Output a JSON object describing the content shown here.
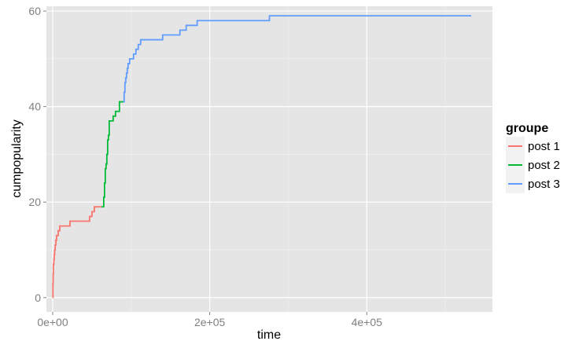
{
  "chart_data": {
    "type": "line",
    "xlabel": "time",
    "ylabel": "cumpopularity",
    "xlim": [
      -8000,
      560000
    ],
    "ylim": [
      -3,
      61
    ],
    "x_ticks": [
      0,
      200000,
      400000
    ],
    "x_tick_labels": [
      "0e+00",
      "2e+05",
      "4e+05"
    ],
    "y_ticks": [
      0,
      20,
      40,
      60
    ],
    "y_tick_labels": [
      "0",
      "20",
      "40",
      "60"
    ],
    "grid": true,
    "legend": {
      "title": "groupe",
      "position": "right"
    },
    "series": [
      {
        "name": "post 1",
        "color": "#F8766D",
        "x": [
          0,
          300,
          600,
          900,
          1500,
          2000,
          2500,
          3200,
          4000,
          5000,
          7000,
          9000,
          12000,
          22000,
          47000,
          50000,
          53000,
          56000,
          62000
        ],
        "y": [
          0,
          3,
          5,
          7,
          8,
          9,
          10,
          11,
          12,
          13,
          14,
          15,
          15,
          16,
          17,
          18,
          19,
          19,
          19
        ]
      },
      {
        "name": "post 2",
        "color": "#00BA38",
        "x": [
          62000,
          65000,
          66000,
          67000,
          68000,
          69000,
          70000,
          71000,
          72000,
          75000,
          77000,
          80000,
          83000,
          85000,
          90000
        ],
        "y": [
          19,
          21,
          24,
          27,
          28,
          30,
          33,
          34,
          37,
          37,
          38,
          39,
          39,
          41,
          41
        ]
      },
      {
        "name": "post 3",
        "color": "#619CFF",
        "x": [
          90000,
          91000,
          92000,
          93000,
          94000,
          95000,
          96000,
          98000,
          100000,
          103000,
          106000,
          109000,
          112000,
          140000,
          162000,
          170000,
          184000,
          276000,
          533000
        ],
        "y": [
          41,
          43,
          45,
          46,
          47,
          48,
          49,
          50,
          50,
          51,
          52,
          53,
          54,
          55,
          56,
          57,
          58,
          59,
          59
        ]
      }
    ]
  }
}
